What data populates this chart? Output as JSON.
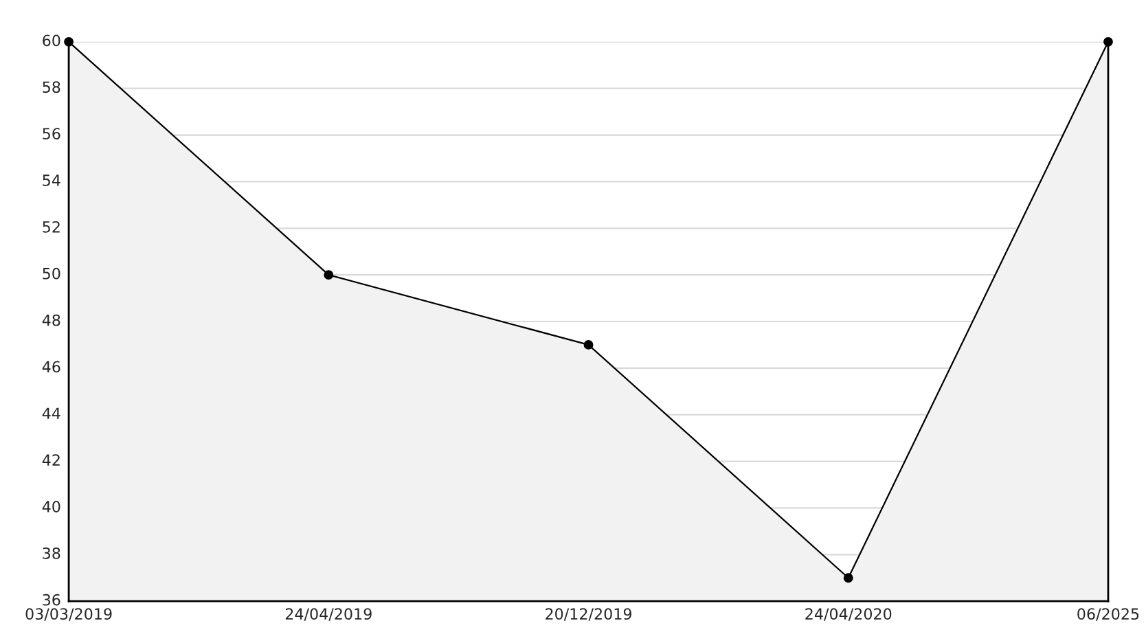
{
  "chart_data": {
    "type": "area",
    "categories": [
      "03/03/2019",
      "24/04/2019",
      "20/12/2019",
      "24/04/2020",
      "06/2025"
    ],
    "series": [
      {
        "color": "#f2f2f2",
        "values": [
          60,
          50,
          47,
          37,
          60
        ]
      }
    ],
    "ylim": [
      36,
      60
    ],
    "yticks": [
      36,
      38,
      40,
      42,
      44,
      46,
      48,
      50,
      52,
      54,
      56,
      58,
      60
    ],
    "grid": "y",
    "marker": "circle",
    "line_style": "solid"
  }
}
